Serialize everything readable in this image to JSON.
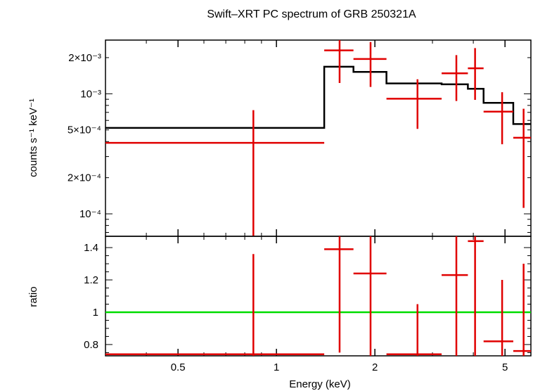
{
  "chart_data": [
    {
      "type": "scatter",
      "panel": "spectrum",
      "title": "Swift–XRT PC spectrum of GRB 250321A",
      "ylabel": "counts s⁻¹ keV⁻¹",
      "xscale": "log",
      "yscale": "log",
      "xlim": [
        0.3,
        6.0
      ],
      "ylim": [
        6.5e-05,
        0.0028
      ],
      "ytick_labels": [
        "10⁻⁴",
        "2×10⁻⁴",
        "5×10⁻⁴",
        "10⁻³",
        "2×10⁻³"
      ],
      "ytick_values": [
        0.0001,
        0.0002,
        0.0005,
        0.001,
        0.002
      ],
      "series": [
        {
          "name": "",
          "color": "#e00000",
          "points": [
            {
              "xlo": 0.3,
              "xhi": 1.4,
              "x": 0.85,
              "y": 0.00039,
              "ylo": 6.5e-05,
              "yhi": 0.00073
            },
            {
              "xlo": 1.4,
              "xhi": 1.72,
              "x": 1.56,
              "y": 0.0023,
              "ylo": 0.00123,
              "yhi": 0.0033
            },
            {
              "xlo": 1.72,
              "xhi": 2.17,
              "x": 1.94,
              "y": 0.00195,
              "ylo": 0.00114,
              "yhi": 0.0027
            },
            {
              "xlo": 2.17,
              "xhi": 3.2,
              "x": 2.7,
              "y": 0.00091,
              "ylo": 0.00051,
              "yhi": 0.00132
            },
            {
              "xlo": 3.2,
              "xhi": 3.85,
              "x": 3.55,
              "y": 0.00148,
              "ylo": 0.00087,
              "yhi": 0.0021
            },
            {
              "xlo": 3.85,
              "xhi": 4.3,
              "x": 4.05,
              "y": 0.00163,
              "ylo": 0.00089,
              "yhi": 0.0024
            },
            {
              "xlo": 4.3,
              "xhi": 5.3,
              "x": 4.9,
              "y": 0.00071,
              "ylo": 0.00038,
              "yhi": 0.00103
            },
            {
              "xlo": 5.3,
              "xhi": 6.0,
              "x": 5.7,
              "y": 0.00043,
              "ylo": 0.000112,
              "yhi": 0.00075
            }
          ]
        },
        {
          "name": "",
          "color": "#000000",
          "type": "step",
          "bins": [
            {
              "xlo": 0.3,
              "xhi": 1.4,
              "y": 0.00052
            },
            {
              "xlo": 1.4,
              "xhi": 1.72,
              "y": 0.00168
            },
            {
              "xlo": 1.72,
              "xhi": 2.17,
              "y": 0.00152
            },
            {
              "xlo": 2.17,
              "xhi": 3.2,
              "y": 0.00122
            },
            {
              "xlo": 3.2,
              "xhi": 3.85,
              "y": 0.0012
            },
            {
              "xlo": 3.85,
              "xhi": 4.3,
              "y": 0.0011
            },
            {
              "xlo": 4.3,
              "xhi": 5.3,
              "y": 0.00084
            },
            {
              "xlo": 5.3,
              "xhi": 6.0,
              "y": 0.00056
            }
          ]
        }
      ]
    },
    {
      "type": "scatter",
      "panel": "ratio",
      "xlabel": "Energy (keV)",
      "ylabel": "ratio",
      "xscale": "log",
      "xlim": [
        0.3,
        6.0
      ],
      "ylim": [
        0.73,
        1.47
      ],
      "xtick_labels": [
        "0.5",
        "1",
        "2",
        "5"
      ],
      "xtick_values": [
        0.5,
        1,
        2,
        5
      ],
      "ytick_labels": [
        "0.8",
        "1",
        "1.2",
        "1.4"
      ],
      "ytick_values": [
        0.8,
        1.0,
        1.2,
        1.4
      ],
      "reference_line": {
        "y": 1.0,
        "color": "#00dd00"
      },
      "series": [
        {
          "name": "",
          "color": "#e00000",
          "points": [
            {
              "xlo": 0.3,
              "xhi": 1.4,
              "x": 0.85,
              "y": 0.74,
              "ylo": 0.73,
              "yhi": 1.36
            },
            {
              "xlo": 1.4,
              "xhi": 1.72,
              "x": 1.56,
              "y": 1.39,
              "ylo": 0.75,
              "yhi": 1.47
            },
            {
              "xlo": 1.72,
              "xhi": 2.17,
              "x": 1.94,
              "y": 1.24,
              "ylo": 0.73,
              "yhi": 1.47
            },
            {
              "xlo": 2.17,
              "xhi": 3.2,
              "x": 2.7,
              "y": 0.74,
              "ylo": 0.73,
              "yhi": 1.05
            },
            {
              "xlo": 3.2,
              "xhi": 3.85,
              "x": 3.55,
              "y": 1.23,
              "ylo": 0.73,
              "yhi": 1.47
            },
            {
              "xlo": 3.85,
              "xhi": 4.3,
              "x": 4.05,
              "y": 1.44,
              "ylo": 0.73,
              "yhi": 1.47
            },
            {
              "xlo": 4.3,
              "xhi": 5.3,
              "x": 4.9,
              "y": 0.82,
              "ylo": 0.73,
              "yhi": 1.2
            },
            {
              "xlo": 5.3,
              "xhi": 6.0,
              "x": 5.7,
              "y": 0.76,
              "ylo": 0.73,
              "yhi": 1.3
            }
          ]
        }
      ]
    }
  ]
}
